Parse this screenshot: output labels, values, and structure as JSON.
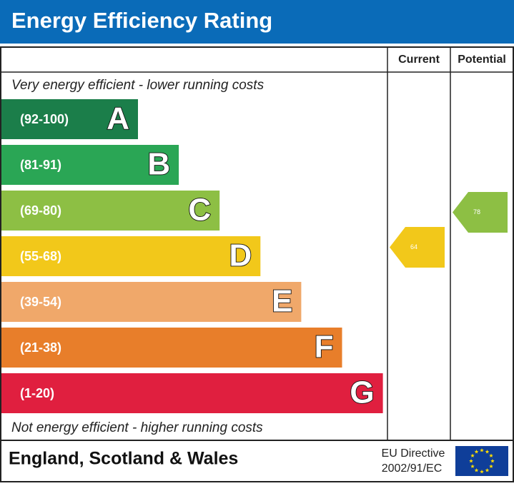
{
  "header": {
    "title": "Energy Efficiency Rating"
  },
  "columns": {
    "current": "Current",
    "potential": "Potential"
  },
  "top_note": "Very energy efficient - lower running costs",
  "bottom_note": "Not energy efficient - higher running costs",
  "bands": [
    {
      "range": "(92-100)",
      "letter": "A",
      "color": "#1b7e4a"
    },
    {
      "range": "(81-91)",
      "letter": "B",
      "color": "#2aa655"
    },
    {
      "range": "(69-80)",
      "letter": "C",
      "color": "#8dbf44"
    },
    {
      "range": "(55-68)",
      "letter": "D",
      "color": "#f2c81a"
    },
    {
      "range": "(39-54)",
      "letter": "E",
      "color": "#f0a86a"
    },
    {
      "range": "(21-38)",
      "letter": "F",
      "color": "#e87e2a"
    },
    {
      "range": "(1-20)",
      "letter": "G",
      "color": "#e01f3f"
    }
  ],
  "current": {
    "value": 64
  },
  "potential": {
    "value": 78
  },
  "footer": {
    "region": "England, Scotland & Wales",
    "directive_line1": "EU Directive",
    "directive_line2": "2002/91/EC"
  }
}
